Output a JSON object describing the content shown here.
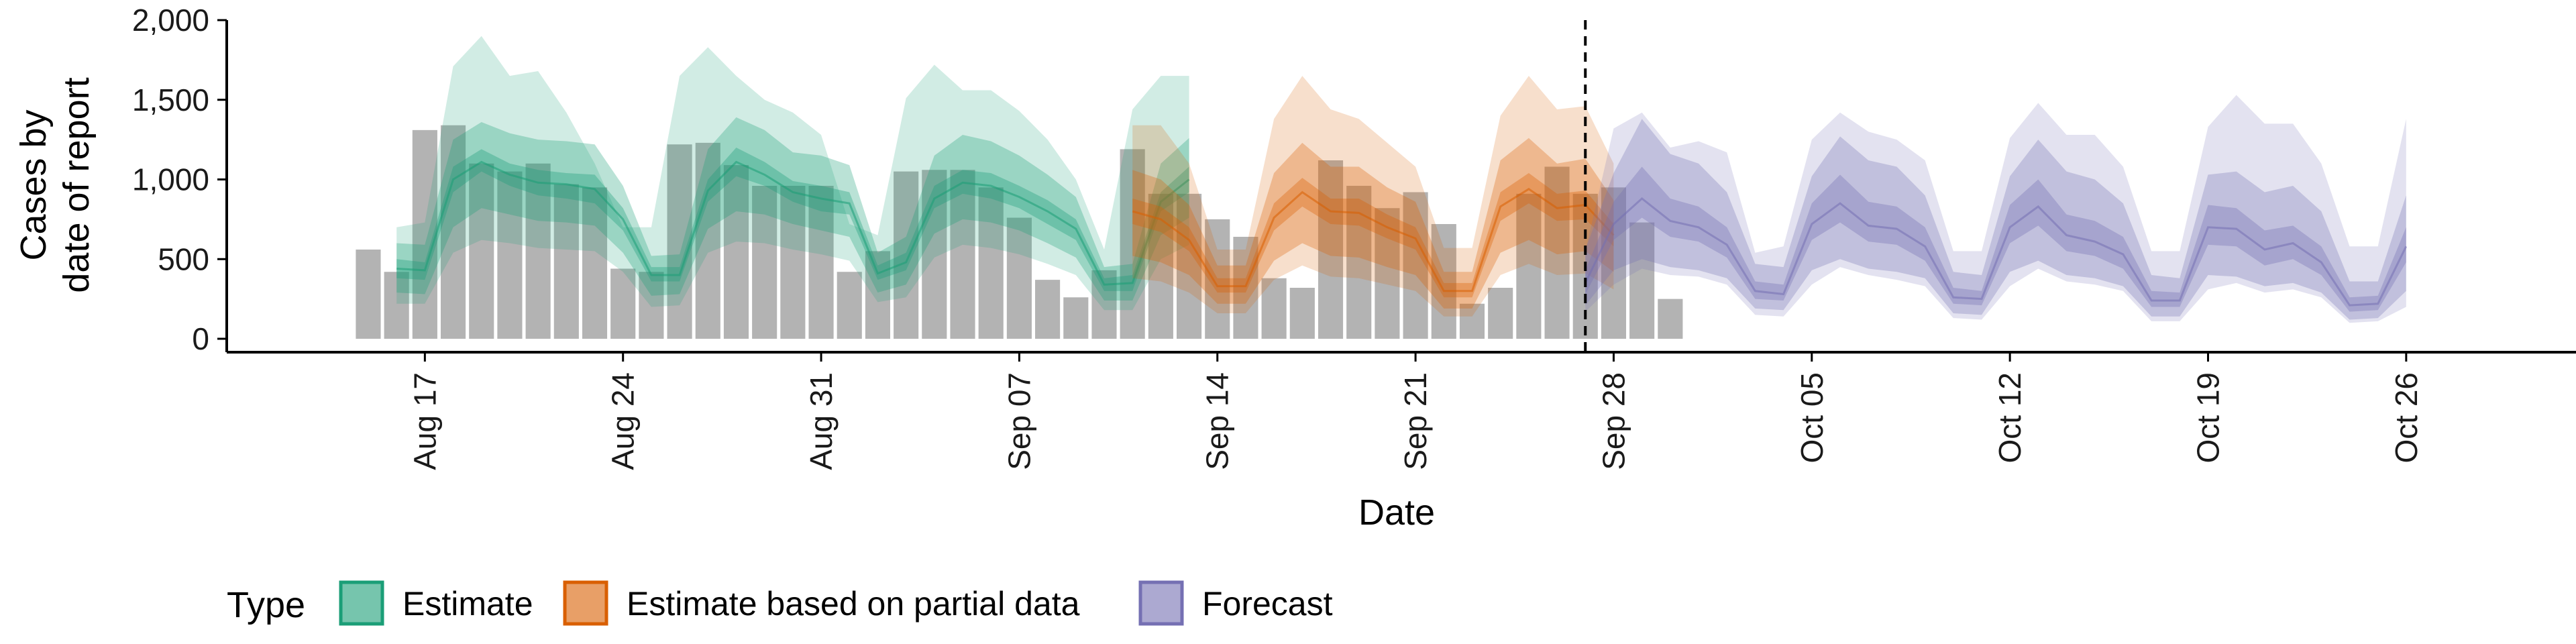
{
  "chart_data": {
    "type": "area",
    "xlabel": "Date",
    "ylabel": [
      "Cases by",
      "date of report"
    ],
    "ylim": [
      0,
      2000
    ],
    "yticks": [
      0,
      500,
      1000,
      1500,
      2000
    ],
    "ytick_labels": [
      "0",
      "500",
      "1,000",
      "1,500",
      "2,000"
    ],
    "x_domain": [
      "2020-08-10",
      "2020-11-01"
    ],
    "xticks": [
      "2020-08-17",
      "2020-08-24",
      "2020-08-31",
      "2020-09-07",
      "2020-09-14",
      "2020-09-21",
      "2020-09-28",
      "2020-10-05",
      "2020-10-12",
      "2020-10-19",
      "2020-10-26"
    ],
    "xtick_labels": [
      "Aug 17",
      "Aug 24",
      "Aug 31",
      "Sep 07",
      "Sep 14",
      "Sep 21",
      "Sep 28",
      "Oct 05",
      "Oct 12",
      "Oct 19",
      "Oct 26"
    ],
    "forecast_date": "2020-09-27",
    "grid": false,
    "legend": {
      "title": "Type",
      "position": "bottom",
      "entries": [
        {
          "label": "Estimate",
          "color": "#1b9e77"
        },
        {
          "label": "Estimate based on partial data",
          "color": "#d95f02"
        },
        {
          "label": "Forecast",
          "color": "#7570b3"
        }
      ]
    },
    "bars": {
      "color": "#b3b3b3",
      "start": "2020-08-15",
      "values": [
        560,
        420,
        1310,
        1340,
        1100,
        1050,
        1100,
        970,
        950,
        440,
        420,
        1220,
        1230,
        1090,
        960,
        960,
        960,
        420,
        550,
        1050,
        1060,
        1060,
        950,
        760,
        370,
        260,
        430,
        1190,
        910,
        910,
        750,
        640,
        380,
        320,
        1120,
        960,
        820,
        920,
        720,
        220,
        320,
        910,
        1080,
        910,
        950,
        730,
        250
      ]
    },
    "series": [
      {
        "name": "Estimate",
        "color": "#1b9e77",
        "start": "2020-08-16",
        "median": [
          440,
          430,
          1000,
          1110,
          1030,
          980,
          970,
          940,
          750,
          400,
          400,
          930,
          1110,
          1030,
          920,
          880,
          850,
          410,
          480,
          880,
          980,
          960,
          890,
          800,
          690,
          340,
          350,
          860,
          1000
        ],
        "lower50": [
          380,
          370,
          920,
          1050,
          960,
          900,
          880,
          850,
          680,
          360,
          360,
          860,
          1020,
          960,
          860,
          800,
          780,
          370,
          430,
          820,
          910,
          880,
          820,
          720,
          620,
          300,
          300,
          800,
          920
        ],
        "upper50": [
          500,
          480,
          1080,
          1190,
          1100,
          1060,
          1040,
          1030,
          820,
          450,
          450,
          1000,
          1200,
          1110,
          990,
          960,
          920,
          460,
          540,
          960,
          1060,
          1040,
          960,
          870,
          750,
          380,
          400,
          920,
          1080
        ],
        "lower90": [
          290,
          280,
          700,
          820,
          780,
          740,
          730,
          710,
          540,
          270,
          280,
          690,
          800,
          780,
          720,
          680,
          640,
          290,
          340,
          660,
          750,
          730,
          680,
          600,
          510,
          240,
          240,
          650,
          760
        ],
        "upper90": [
          600,
          590,
          1250,
          1360,
          1290,
          1250,
          1240,
          1220,
          960,
          520,
          530,
          1190,
          1390,
          1310,
          1170,
          1150,
          1090,
          540,
          640,
          1150,
          1280,
          1240,
          1150,
          1030,
          890,
          450,
          470,
          1100,
          1260
        ],
        "lower95": [
          220,
          220,
          540,
          620,
          600,
          570,
          560,
          550,
          420,
          200,
          210,
          540,
          610,
          600,
          560,
          530,
          490,
          230,
          260,
          510,
          590,
          570,
          530,
          470,
          400,
          180,
          180,
          500,
          590
        ],
        "upper95": [
          700,
          730,
          1710,
          1900,
          1650,
          1680,
          1420,
          1100,
          700,
          700,
          1650,
          1830,
          1650,
          1500,
          1420,
          1280,
          720,
          650,
          1510,
          1720,
          1560,
          1560,
          1430,
          1250,
          1000,
          560,
          1440,
          1650,
          1650
        ]
      },
      {
        "name": "Estimate based on partial data",
        "color": "#d95f02",
        "start": "2020-09-11",
        "median": [
          800,
          750,
          620,
          330,
          330,
          760,
          920,
          800,
          790,
          700,
          630,
          300,
          300,
          830,
          940,
          820,
          840,
          650
        ],
        "lower50": [
          720,
          670,
          550,
          290,
          290,
          680,
          830,
          720,
          710,
          630,
          560,
          260,
          260,
          740,
          850,
          740,
          750,
          580
        ],
        "upper50": [
          880,
          830,
          700,
          380,
          380,
          850,
          1010,
          880,
          880,
          780,
          700,
          350,
          350,
          920,
          1040,
          910,
          930,
          720
        ],
        "lower90": [
          520,
          480,
          400,
          220,
          220,
          490,
          600,
          520,
          510,
          450,
          400,
          190,
          190,
          540,
          620,
          530,
          550,
          420
        ],
        "upper90": [
          1060,
          1000,
          840,
          460,
          460,
          1040,
          1230,
          1080,
          1080,
          950,
          860,
          420,
          420,
          1120,
          1260,
          1100,
          1130,
          870
        ],
        "lower95": [
          380,
          360,
          290,
          160,
          160,
          370,
          460,
          390,
          380,
          340,
          300,
          140,
          140,
          400,
          470,
          400,
          410,
          310
        ],
        "upper95": [
          1340,
          1340,
          1100,
          560,
          560,
          1380,
          1650,
          1440,
          1380,
          1230,
          1080,
          570,
          570,
          1400,
          1650,
          1440,
          1460,
          1100
        ]
      },
      {
        "name": "Forecast",
        "color": "#7570b3",
        "start": "2020-09-27",
        "median": [
          350,
          720,
          880,
          740,
          700,
          590,
          300,
          280,
          720,
          850,
          710,
          690,
          580,
          260,
          250,
          700,
          830,
          650,
          610,
          530,
          240,
          240,
          700,
          690,
          560,
          600,
          480,
          210,
          220,
          580
        ],
        "lower50": [
          280,
          620,
          760,
          640,
          610,
          510,
          250,
          240,
          620,
          730,
          610,
          590,
          490,
          220,
          210,
          600,
          710,
          550,
          520,
          440,
          200,
          200,
          590,
          580,
          460,
          500,
          400,
          170,
          180,
          480
        ],
        "upper50": [
          430,
          860,
          1080,
          880,
          830,
          700,
          360,
          340,
          850,
          1030,
          860,
          830,
          700,
          320,
          300,
          840,
          1000,
          780,
          740,
          640,
          300,
          290,
          840,
          820,
          680,
          710,
          580,
          260,
          270,
          700
        ],
        "lower90": [
          210,
          430,
          500,
          450,
          430,
          380,
          190,
          180,
          430,
          500,
          440,
          420,
          380,
          160,
          150,
          420,
          490,
          400,
          380,
          330,
          140,
          140,
          400,
          390,
          330,
          350,
          290,
          120,
          130,
          300
        ],
        "upper90": [
          560,
          1040,
          1380,
          1160,
          1100,
          920,
          470,
          450,
          1020,
          1270,
          1120,
          1080,
          900,
          420,
          400,
          1020,
          1250,
          1050,
          1000,
          850,
          400,
          380,
          1030,
          1050,
          920,
          960,
          800,
          360,
          360,
          900
        ],
        "lower95": [
          170,
          340,
          440,
          400,
          390,
          340,
          150,
          140,
          340,
          450,
          400,
          370,
          330,
          130,
          120,
          330,
          440,
          360,
          340,
          300,
          110,
          110,
          310,
          350,
          290,
          310,
          260,
          100,
          110,
          200
        ],
        "upper95": [
          550,
          1320,
          1420,
          1200,
          1240,
          1170,
          540,
          580,
          1250,
          1420,
          1300,
          1250,
          1120,
          550,
          550,
          1260,
          1480,
          1280,
          1280,
          1080,
          550,
          550,
          1330,
          1530,
          1350,
          1350,
          1100,
          580,
          580,
          1380
        ]
      }
    ]
  }
}
